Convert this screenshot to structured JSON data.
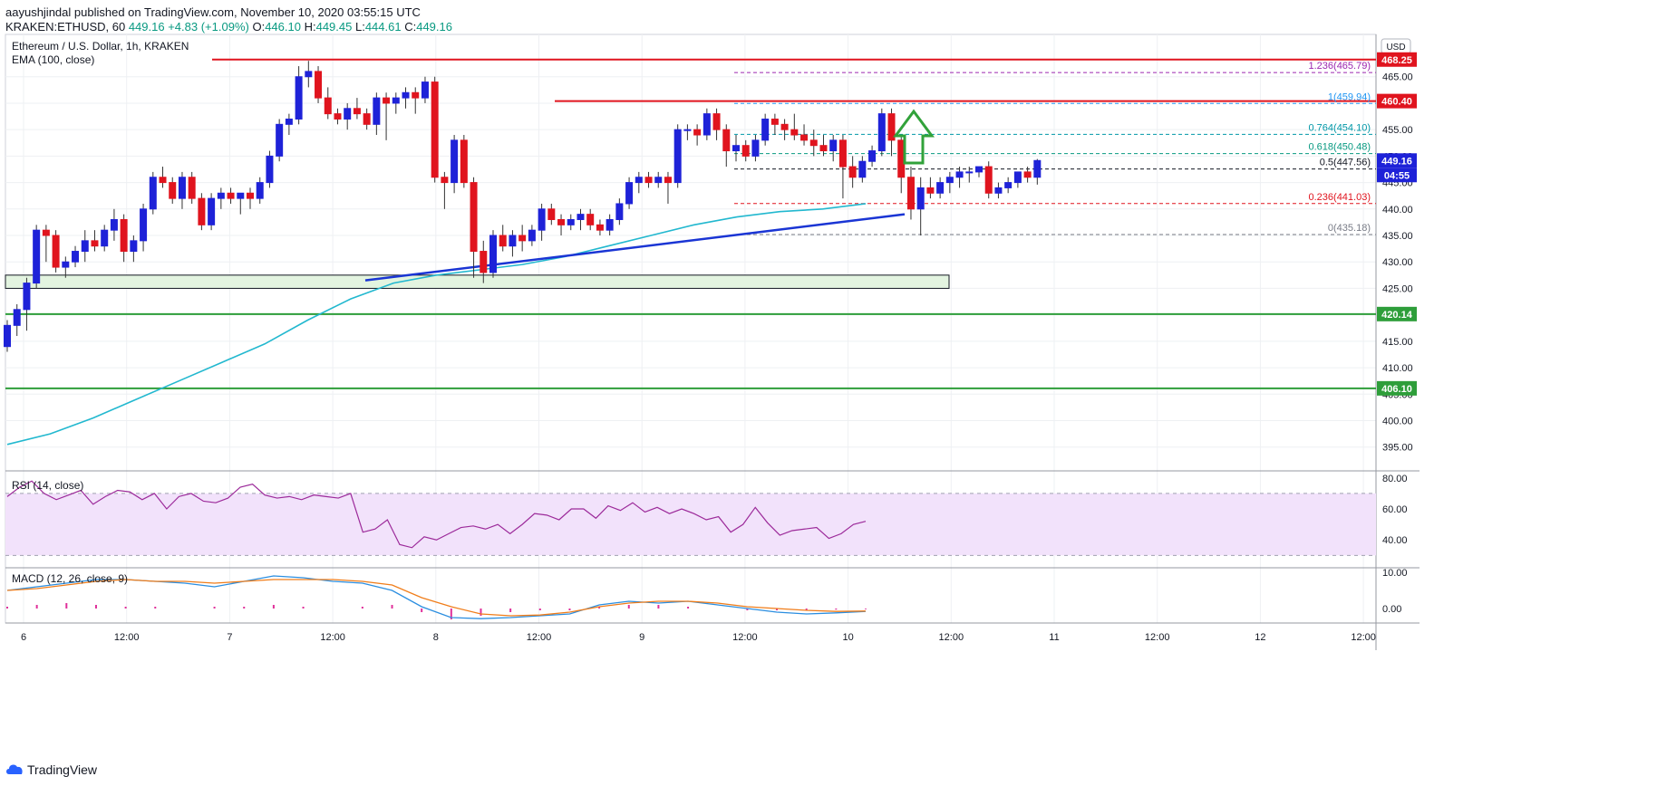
{
  "header": {
    "publisher": "aayushjindal",
    "published_text": " published on TradingView.com, November 10, 2020 03:55:15 UTC",
    "symbol_line": "KRAKEN:ETHUSD, 60",
    "last": "449.16",
    "change": "+4.83 (+1.09%)",
    "o_label": "O:",
    "o": "446.10",
    "h_label": "H:",
    "h": "449.45",
    "l_label": "L:",
    "l": "444.61",
    "c_label": "C:",
    "c": "449.16"
  },
  "pane_titles": {
    "main": "Ethereum / U.S. Dollar, 1h, KRAKEN",
    "ema": "EMA (100, close)",
    "rsi": "RSI (14, close)",
    "macd": "MACD (12, 26, close, 9)"
  },
  "currency_label": "USD",
  "footer": {
    "brand": "TradingView"
  },
  "colors": {
    "up": "#1e22d8",
    "down": "#e0141e",
    "ema": "#22b8cf",
    "trendline": "#1a35d4",
    "resistance": "#e0141e",
    "support": "#2e9e3a",
    "rsi_band": "#f2e2fb",
    "rsi_line": "#9c2a9a",
    "macd_line": "#2b8ee0",
    "signal_line": "#f07d1a",
    "histogram": "#e0309a",
    "arrow": "#31a23a"
  },
  "chart_data": [
    {
      "type": "candlestick",
      "pane": "main",
      "title": "Ethereum / U.S. Dollar, 1h, KRAKEN",
      "ylim": [
        390.5,
        473
      ],
      "y_ticks": [
        395,
        400,
        405,
        410,
        415,
        420,
        425,
        430,
        435,
        440,
        445,
        450,
        455,
        460,
        465
      ],
      "x_tick_labels": [
        "6",
        "12:00",
        "7",
        "12:00",
        "8",
        "12:00",
        "9",
        "12:00",
        "10",
        "12:00",
        "11",
        "12:00",
        "12",
        "12:00"
      ],
      "ohlc": [
        [
          414,
          419,
          413,
          418
        ],
        [
          418,
          422,
          416,
          421
        ],
        [
          421,
          427,
          417,
          426
        ],
        [
          426,
          437,
          425,
          436
        ],
        [
          436,
          437,
          430,
          435
        ],
        [
          435,
          436,
          428,
          429
        ],
        [
          429,
          431,
          427,
          430
        ],
        [
          430,
          433,
          429,
          432
        ],
        [
          432,
          436,
          430,
          434
        ],
        [
          434,
          436,
          432,
          433
        ],
        [
          433,
          437,
          432,
          436
        ],
        [
          436,
          440,
          434,
          438
        ],
        [
          438,
          439,
          430,
          432
        ],
        [
          432,
          435,
          430,
          434
        ],
        [
          434,
          441,
          432,
          440
        ],
        [
          440,
          447,
          439,
          446
        ],
        [
          446,
          448,
          444,
          445
        ],
        [
          445,
          446,
          441,
          442
        ],
        [
          442,
          447,
          440,
          446
        ],
        [
          446,
          447,
          441,
          442
        ],
        [
          442,
          443,
          436,
          437
        ],
        [
          437,
          443,
          436,
          442
        ],
        [
          442,
          444,
          440,
          443
        ],
        [
          443,
          444,
          441,
          442
        ],
        [
          442,
          443,
          439,
          443
        ],
        [
          443,
          444,
          440,
          442
        ],
        [
          442,
          446,
          441,
          445
        ],
        [
          445,
          451,
          444,
          450
        ],
        [
          450,
          457,
          449,
          456
        ],
        [
          456,
          458,
          454,
          457
        ],
        [
          457,
          467,
          456,
          465
        ],
        [
          465,
          468,
          463,
          466
        ],
        [
          466,
          467,
          460,
          461
        ],
        [
          461,
          463,
          457,
          458
        ],
        [
          458,
          459,
          456,
          457
        ],
        [
          457,
          460,
          455,
          459
        ],
        [
          459,
          461,
          457,
          458
        ],
        [
          458,
          459,
          455,
          456
        ],
        [
          456,
          462,
          454,
          461
        ],
        [
          461,
          462,
          453,
          460
        ],
        [
          460,
          462,
          458,
          461
        ],
        [
          461,
          463,
          459,
          462
        ],
        [
          462,
          463,
          458,
          461
        ],
        [
          461,
          465,
          460,
          464
        ],
        [
          464,
          465,
          445,
          446
        ],
        [
          446,
          447,
          440,
          445
        ],
        [
          445,
          454,
          443,
          453
        ],
        [
          453,
          454,
          444,
          445
        ],
        [
          445,
          446,
          427,
          432
        ],
        [
          432,
          434,
          426,
          428
        ],
        [
          428,
          436,
          427,
          435
        ],
        [
          435,
          437,
          432,
          433
        ],
        [
          433,
          436,
          431,
          435
        ],
        [
          435,
          437,
          432,
          434
        ],
        [
          434,
          437,
          433,
          436
        ],
        [
          436,
          441,
          434,
          440
        ],
        [
          440,
          441,
          437,
          438
        ],
        [
          438,
          439,
          435,
          437
        ],
        [
          437,
          439,
          436,
          438
        ],
        [
          438,
          440,
          436,
          439
        ],
        [
          439,
          440,
          436,
          437
        ],
        [
          437,
          438,
          435,
          436
        ],
        [
          436,
          439,
          435,
          438
        ],
        [
          438,
          442,
          437,
          441
        ],
        [
          441,
          446,
          440,
          445
        ],
        [
          445,
          447,
          443,
          446
        ],
        [
          446,
          447,
          444,
          445
        ],
        [
          445,
          447,
          444,
          446
        ],
        [
          446,
          447,
          441,
          445
        ],
        [
          445,
          456,
          444,
          455
        ],
        [
          455,
          456,
          453,
          455
        ],
        [
          455,
          456,
          452,
          454
        ],
        [
          454,
          459,
          453,
          458
        ],
        [
          458,
          459,
          453,
          455
        ],
        [
          455,
          456,
          448,
          451
        ],
        [
          451,
          454,
          449,
          452
        ],
        [
          452,
          453,
          449,
          450
        ],
        [
          450,
          454,
          449,
          453
        ],
        [
          453,
          458,
          452,
          457
        ],
        [
          457,
          458,
          454,
          456
        ],
        [
          456,
          457,
          453,
          455
        ],
        [
          455,
          458,
          453,
          454
        ],
        [
          454,
          456,
          452,
          453
        ],
        [
          453,
          455,
          450,
          452
        ],
        [
          452,
          454,
          450,
          451
        ],
        [
          451,
          454,
          449,
          453
        ],
        [
          453,
          454,
          442,
          448
        ],
        [
          448,
          450,
          444,
          446
        ],
        [
          446,
          450,
          445,
          449
        ],
        [
          449,
          452,
          448,
          451
        ],
        [
          451,
          459,
          450,
          458
        ],
        [
          458,
          459,
          450,
          453
        ],
        [
          453,
          454,
          443,
          446
        ],
        [
          446,
          448,
          438,
          440
        ],
        [
          440,
          446,
          435,
          444
        ],
        [
          444,
          446,
          442,
          443
        ],
        [
          443,
          446,
          442,
          445
        ],
        [
          445,
          447,
          443,
          446
        ],
        [
          446,
          448,
          444,
          447
        ],
        [
          447,
          448,
          445,
          447
        ],
        [
          447,
          448,
          446,
          448
        ],
        [
          448,
          449,
          442,
          443
        ],
        [
          443,
          445,
          442,
          444
        ],
        [
          444,
          446,
          443,
          445
        ],
        [
          445,
          447,
          444,
          447
        ],
        [
          447,
          448,
          445,
          446
        ],
        [
          446,
          449.45,
          444.61,
          449.16
        ]
      ],
      "ema_100": [
        [
          0,
          395.5
        ],
        [
          20,
          397.5
        ],
        [
          40,
          400.5
        ],
        [
          60,
          404
        ],
        [
          80,
          407.5
        ],
        [
          100,
          411
        ],
        [
          120,
          414.5
        ],
        [
          140,
          419
        ],
        [
          160,
          423
        ],
        [
          180,
          426
        ],
        [
          200,
          427.5
        ],
        [
          220,
          428.5
        ],
        [
          240,
          429.5
        ],
        [
          260,
          431
        ],
        [
          280,
          433
        ],
        [
          300,
          435
        ],
        [
          320,
          437
        ],
        [
          340,
          438.5
        ],
        [
          360,
          439.5
        ],
        [
          380,
          440
        ],
        [
          400,
          441
        ]
      ],
      "horizontal_levels": [
        {
          "price": 468.25,
          "label": "468.25",
          "kind": "resistance"
        },
        {
          "price": 460.4,
          "label": "460.40",
          "kind": "resistance"
        },
        {
          "price": 420.14,
          "label": "420.14",
          "kind": "support"
        },
        {
          "price": 406.1,
          "label": "406.10",
          "kind": "support"
        }
      ],
      "support_zone": [
        425,
        427.5
      ],
      "trendline": [
        [
          171,
          426.5
        ],
        [
          414,
          439
        ]
      ],
      "last_price_label": "449.16",
      "countdown_label": "04:55",
      "fibonacci": [
        {
          "ratio": "1.236",
          "price": "465.79",
          "color": "#9c27b0",
          "v": 465.79
        },
        {
          "ratio": "1",
          "price": "459.94",
          "color": "#2196f3",
          "v": 459.94
        },
        {
          "ratio": "0.764",
          "price": "454.10",
          "color": "#0097a7",
          "v": 454.1
        },
        {
          "ratio": "0.618",
          "price": "450.48",
          "color": "#089981",
          "v": 450.48
        },
        {
          "ratio": "0.5",
          "price": "447.56",
          "color": "#131722",
          "v": 447.56
        },
        {
          "ratio": "0.236",
          "price": "441.03",
          "color": "#e0141e",
          "v": 441.03
        },
        {
          "ratio": "0",
          "price": "435.18",
          "color": "#787b86",
          "v": 435.18
        }
      ]
    },
    {
      "type": "line",
      "pane": "rsi",
      "title": "RSI (14, close)",
      "ylim": [
        22,
        84
      ],
      "y_ticks": [
        40,
        60,
        80
      ],
      "band": [
        30,
        70
      ],
      "values": [
        68,
        74,
        78,
        70,
        66,
        69,
        72,
        63,
        68,
        72,
        71,
        66,
        70,
        60,
        68,
        70,
        65,
        64,
        67,
        74,
        76,
        69,
        67,
        68,
        66,
        69,
        68,
        67,
        70,
        45,
        47,
        53,
        37,
        35,
        42,
        40,
        44,
        48,
        49,
        47,
        50,
        44,
        50,
        57,
        56,
        53,
        60,
        60,
        54,
        62,
        59,
        64,
        58,
        61,
        57,
        60,
        57,
        53,
        55,
        45,
        50,
        61,
        51,
        43,
        46,
        47,
        48,
        41,
        44,
        50,
        52
      ]
    },
    {
      "type": "line",
      "pane": "macd",
      "title": "MACD (12, 26, close, 9)",
      "ylim": [
        -4,
        11
      ],
      "y_ticks": [
        0.0,
        10.0
      ],
      "y_tick_labels": [
        "0.00",
        "10.00"
      ],
      "series": [
        {
          "values": [
            5,
            6,
            7,
            8,
            8,
            7.5,
            7,
            6,
            7.5,
            9,
            8.5,
            7.5,
            7,
            5,
            0.5,
            -2.5,
            -2.8,
            -2.5,
            -2,
            -1.5,
            1,
            2,
            1.5,
            2,
            1,
            0,
            -1,
            -1.5,
            -1.2,
            -0.8
          ]
        },
        {
          "values": [
            5,
            5.5,
            6.5,
            7.5,
            8,
            7.5,
            7.5,
            7,
            7.5,
            8,
            8,
            8,
            7.5,
            6.5,
            3,
            0.5,
            -1.5,
            -2,
            -1.8,
            -1,
            0.5,
            1.5,
            2,
            2,
            1.5,
            0.5,
            0,
            -0.5,
            -0.8,
            -0.7
          ]
        }
      ],
      "histogram": [
        0.5,
        1,
        1.5,
        1,
        0.5,
        0.5,
        0,
        0.5,
        0.5,
        1,
        0.5,
        0,
        0.5,
        1,
        -1,
        -3,
        -2,
        -1,
        -0.5,
        -0.5,
        0.5,
        1,
        1,
        0.5,
        0,
        -0.5,
        -0.5,
        -0.5,
        -0.3,
        -0.2
      ]
    }
  ]
}
